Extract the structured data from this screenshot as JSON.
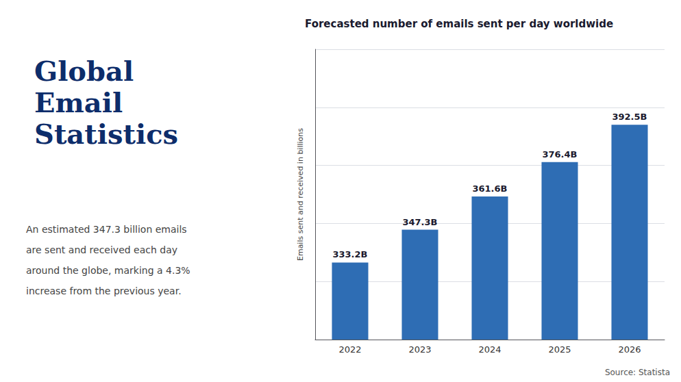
{
  "chart_data": {
    "type": "bar",
    "title": "Forecasted number of emails sent per day worldwide",
    "ylabel": "Emails sent and received in billions",
    "categories": [
      "2022",
      "2023",
      "2024",
      "2025",
      "2026"
    ],
    "values": [
      333.2,
      347.3,
      361.6,
      376.4,
      392.5
    ],
    "value_labels": [
      "333.2B",
      "347.3B",
      "361.6B",
      "376.4B",
      "392.5B"
    ],
    "data_labels": true,
    "color": "#2e6db4",
    "ylim": [
      300,
      425
    ],
    "yticks": [
      300,
      325,
      350,
      375,
      400,
      425
    ],
    "grid": true,
    "tick_labels": "x",
    "annotations": [
      "Global\nEmail\nStatistics",
      "An estimated 347.3 billion emails",
      "are sent and received each day",
      "around the globe, marking a 4.3%",
      "increase from the previous year.",
      "Source: Statista"
    ]
  }
}
